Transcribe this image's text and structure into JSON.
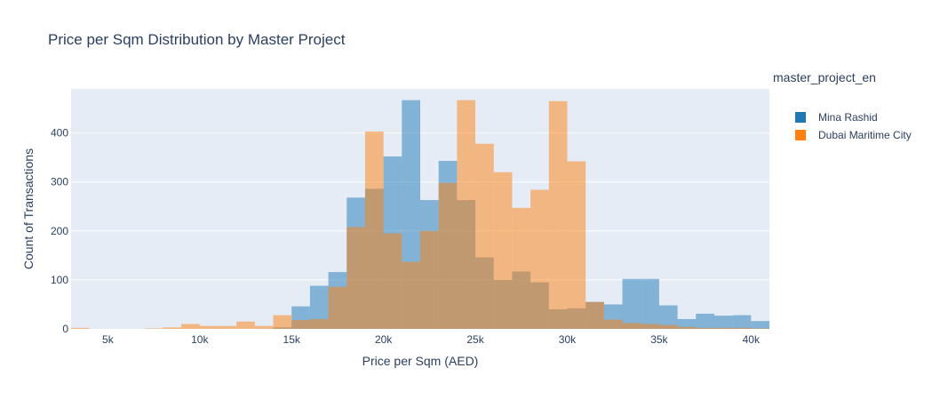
{
  "chart_data": {
    "type": "bar",
    "title": "Price per Sqm Distribution by Master Project",
    "xlabel": "Price per Sqm (AED)",
    "ylabel": "Count of Transactions",
    "xlim": [
      3000,
      41000
    ],
    "ylim": [
      0,
      490
    ],
    "bin_size": 1000,
    "x_ticks": [
      5000,
      10000,
      15000,
      20000,
      25000,
      30000,
      35000,
      40000
    ],
    "x_tick_labels": [
      "5k",
      "10k",
      "15k",
      "20k",
      "25k",
      "30k",
      "35k",
      "40k"
    ],
    "y_ticks": [
      0,
      100,
      200,
      300,
      400
    ],
    "y_tick_labels": [
      "0",
      "100",
      "200",
      "300",
      "400"
    ],
    "grid": true,
    "barmode": "overlay",
    "legend_title": "master_project_en",
    "legend_position": "right",
    "series": [
      {
        "name": "Mina Rashid",
        "color": "#1f77b4",
        "bin_starts": [
          14000,
          15000,
          16000,
          17000,
          18000,
          19000,
          20000,
          21000,
          22000,
          23000,
          24000,
          25000,
          26000,
          27000,
          28000,
          29000,
          30000,
          31000,
          32000,
          33000,
          34000,
          35000,
          36000,
          37000,
          38000,
          39000,
          40000
        ],
        "values": [
          3,
          46,
          88,
          116,
          268,
          286,
          352,
          467,
          263,
          343,
          263,
          146,
          100,
          117,
          95,
          40,
          42,
          55,
          50,
          102,
          102,
          48,
          20,
          31,
          27,
          28,
          16
        ]
      },
      {
        "name": "Dubai Maritime City",
        "color": "#ff7f0e",
        "bin_starts": [
          3000,
          7000,
          8000,
          9000,
          10000,
          11000,
          12000,
          13000,
          14000,
          15000,
          16000,
          17000,
          18000,
          19000,
          20000,
          21000,
          22000,
          23000,
          24000,
          25000,
          26000,
          27000,
          28000,
          29000,
          30000,
          31000,
          32000,
          33000,
          34000,
          35000,
          36000,
          37000,
          38000,
          39000,
          40000
        ],
        "values": [
          2,
          1,
          3,
          10,
          6,
          6,
          15,
          6,
          28,
          18,
          20,
          86,
          208,
          403,
          195,
          137,
          200,
          298,
          467,
          378,
          320,
          247,
          284,
          465,
          342,
          55,
          19,
          12,
          10,
          8,
          4,
          2,
          2,
          2,
          1
        ]
      }
    ]
  }
}
